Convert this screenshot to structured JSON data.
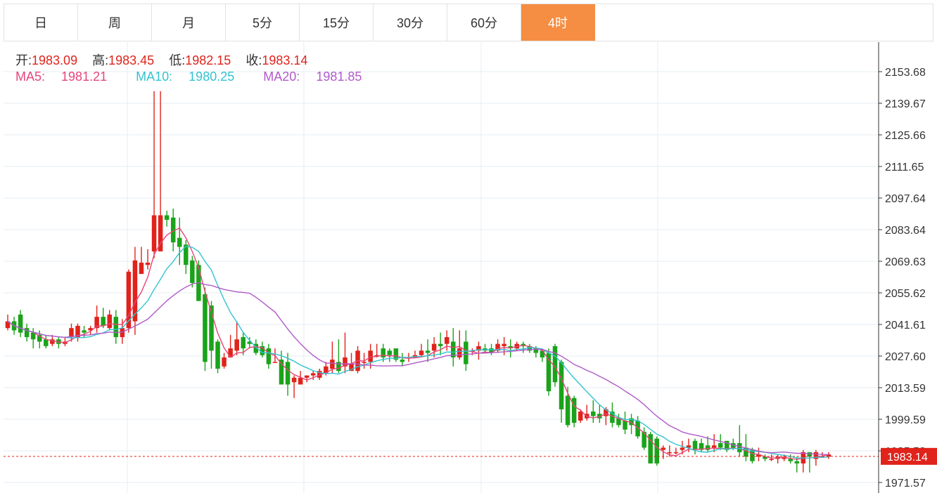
{
  "tabs": [
    {
      "label": "日",
      "active": false
    },
    {
      "label": "周",
      "active": false
    },
    {
      "label": "月",
      "active": false
    },
    {
      "label": "5分",
      "active": false
    },
    {
      "label": "15分",
      "active": false
    },
    {
      "label": "30分",
      "active": false
    },
    {
      "label": "60分",
      "active": false
    },
    {
      "label": "4时",
      "active": true
    }
  ],
  "ohlc": {
    "open_label": "开:",
    "open": "1983.09",
    "high_label": "高:",
    "high": "1983.45",
    "low_label": "低:",
    "low": "1982.15",
    "close_label": "收:",
    "close": "1983.14"
  },
  "ma": {
    "ma5_label": "MA5:",
    "ma5": "1981.21",
    "ma10_label": "MA10:",
    "ma10": "1980.25",
    "ma20_label": "MA20:",
    "ma20": "1981.85"
  },
  "colors": {
    "up": "#e0231b",
    "down": "#1aa31a",
    "ma5": "#e8457a",
    "ma10": "#33c3d1",
    "ma20": "#b05ac8",
    "active_tab": "#f58d42",
    "price_tag": "#e0231b"
  },
  "chart_data": {
    "type": "candlestick",
    "y_ticks": [
      "2153.68",
      "2139.67",
      "2125.66",
      "2111.65",
      "2097.64",
      "2083.64",
      "2069.63",
      "2055.62",
      "2041.61",
      "2027.60",
      "2013.59",
      "1999.59",
      "1985.58",
      "1971.57"
    ],
    "ylim": [
      1969,
      2160
    ],
    "current_price": "1983.14",
    "grid": true,
    "candles": [
      [
        2040,
        2043,
        2046,
        2039
      ],
      [
        2043,
        2039,
        2045,
        2037
      ],
      [
        2046,
        2038,
        2048,
        2036
      ],
      [
        2040,
        2036,
        2042,
        2034
      ],
      [
        2038,
        2035,
        2040,
        2031
      ],
      [
        2037,
        2034,
        2039,
        2031
      ],
      [
        2035,
        2032,
        2037,
        2031
      ],
      [
        2033,
        2035,
        2037,
        2032
      ],
      [
        2035,
        2033,
        2036,
        2031
      ],
      [
        2033,
        2034,
        2036,
        2032
      ],
      [
        2036,
        2040,
        2042,
        2034
      ],
      [
        2036,
        2041,
        2042,
        2034
      ],
      [
        2039,
        2038,
        2041,
        2036
      ],
      [
        2039,
        2040,
        2041,
        2037
      ],
      [
        2040,
        2045,
        2050,
        2038
      ],
      [
        2045,
        2041,
        2049,
        2040
      ],
      [
        2040,
        2046,
        2048,
        2039
      ],
      [
        2045,
        2036,
        2048,
        2033
      ],
      [
        2036,
        2040,
        2044,
        2033
      ],
      [
        2040,
        2065,
        2066,
        2038
      ],
      [
        2043,
        2070,
        2076,
        2037
      ],
      [
        2064,
        2069,
        2076,
        2064
      ],
      [
        2068,
        2069,
        2075,
        2066
      ],
      [
        2074,
        2090,
        2145,
        2071
      ],
      [
        2074,
        2090,
        2145,
        2074
      ],
      [
        2090,
        2088,
        2092,
        2085
      ],
      [
        2089,
        2078,
        2093,
        2074
      ],
      [
        2080,
        2076,
        2089,
        2068
      ],
      [
        2077,
        2068,
        2079,
        2064
      ],
      [
        2070,
        2060,
        2072,
        2058
      ],
      [
        2068,
        2052,
        2070,
        2052
      ],
      [
        2055,
        2025,
        2058,
        2021
      ],
      [
        2050,
        2030,
        2052,
        2022
      ],
      [
        2034,
        2022,
        2035,
        2020
      ],
      [
        2023,
        2027,
        2029,
        2022
      ],
      [
        2027,
        2031,
        2037,
        2028
      ],
      [
        2030,
        2035,
        2043,
        2028
      ],
      [
        2036,
        2031,
        2038,
        2028
      ],
      [
        2034,
        2033,
        2036,
        2031
      ],
      [
        2033,
        2029,
        2035,
        2028
      ],
      [
        2032,
        2028,
        2034,
        2027
      ],
      [
        2031,
        2024,
        2033,
        2022
      ],
      [
        2025,
        2025,
        2031,
        2025
      ],
      [
        2026,
        2015,
        2030,
        2015
      ],
      [
        2025,
        2015,
        2029,
        2010
      ],
      [
        2016,
        2018,
        2019,
        2009
      ],
      [
        2015,
        2018,
        2021,
        2016
      ],
      [
        2018,
        2019,
        2019,
        2016
      ],
      [
        2019,
        2020,
        2021,
        2017
      ],
      [
        2018,
        2021,
        2022,
        2017
      ],
      [
        2020,
        2023,
        2025,
        2019
      ],
      [
        2022,
        2026,
        2034,
        2020
      ],
      [
        2025,
        2021,
        2035,
        2020
      ],
      [
        2023,
        2027,
        2038,
        2020
      ],
      [
        2021,
        2024,
        2029,
        2021
      ],
      [
        2021,
        2030,
        2032,
        2020
      ],
      [
        2025,
        2025,
        2029,
        2022
      ],
      [
        2025,
        2030,
        2033,
        2022
      ],
      [
        2028,
        2028,
        2033,
        2027
      ],
      [
        2031,
        2027,
        2033,
        2025
      ],
      [
        2030,
        2028,
        2031,
        2025
      ],
      [
        2031,
        2026,
        2031,
        2025
      ],
      [
        2026,
        2025,
        2029,
        2023
      ],
      [
        2027,
        2027,
        2029,
        2025
      ],
      [
        2027,
        2028,
        2030,
        2027
      ],
      [
        2028,
        2030,
        2033,
        2027
      ],
      [
        2030,
        2029,
        2035,
        2025
      ],
      [
        2030,
        2033,
        2036,
        2027
      ],
      [
        2033,
        2032,
        2038,
        2028
      ],
      [
        2033,
        2036,
        2039,
        2030
      ],
      [
        2034,
        2027,
        2040,
        2023
      ],
      [
        2027,
        2031,
        2039,
        2026
      ],
      [
        2034,
        2024,
        2039,
        2021
      ],
      [
        2030,
        2030,
        2031,
        2028
      ],
      [
        2030,
        2032,
        2034,
        2026
      ],
      [
        2031,
        2030,
        2033,
        2029
      ],
      [
        2031,
        2029,
        2033,
        2028
      ],
      [
        2030,
        2033,
        2035,
        2029
      ],
      [
        2032,
        2033,
        2036,
        2028
      ],
      [
        2032,
        2031,
        2035,
        2027
      ],
      [
        2031,
        2033,
        2034,
        2030
      ],
      [
        2033,
        2032,
        2034,
        2029
      ],
      [
        2032,
        2030,
        2033,
        2029
      ],
      [
        2031,
        2029,
        2032,
        2027
      ],
      [
        2030,
        2027,
        2031,
        2025
      ],
      [
        2029,
        2012,
        2031,
        2010
      ],
      [
        2032,
        2016,
        2033,
        2014
      ],
      [
        2025,
        2004,
        2026,
        1998
      ],
      [
        2010,
        1997,
        2014,
        1996
      ],
      [
        2009,
        1998,
        2010,
        1996
      ],
      [
        1999,
        2003,
        2004,
        1998
      ],
      [
        2000,
        2002,
        2006,
        1999
      ],
      [
        2003,
        2001,
        2008,
        1998
      ],
      [
        2002,
        2000,
        2006,
        1998
      ],
      [
        2001,
        2004,
        2005,
        1997
      ],
      [
        2003,
        1998,
        2007,
        1996
      ],
      [
        2000,
        1997,
        2002,
        1996
      ],
      [
        1999,
        1995,
        2003,
        1993
      ],
      [
        2000,
        1997,
        2002,
        1993
      ],
      [
        1999,
        1992,
        2001,
        1991
      ],
      [
        1994,
        1987,
        1996,
        1986
      ],
      [
        1993,
        1980,
        1994,
        1980
      ],
      [
        1991,
        1980,
        1992,
        1979
      ],
      [
        1986,
        1987,
        1988,
        1982
      ],
      [
        1985,
        1985,
        1988,
        1983
      ],
      [
        1985,
        1985,
        1987,
        1984
      ],
      [
        1986,
        1987,
        1990,
        1984
      ],
      [
        1987,
        1988,
        1991,
        1985
      ],
      [
        1990,
        1986,
        1991,
        1984
      ],
      [
        1989,
        1986,
        1991,
        1985
      ],
      [
        1988,
        1986,
        1992,
        1985
      ],
      [
        1987,
        1988,
        1993,
        1985
      ],
      [
        1989,
        1987,
        1993,
        1986
      ],
      [
        1990,
        1986,
        1990,
        1985
      ],
      [
        1989,
        1987,
        1991,
        1986
      ],
      [
        1989,
        1985,
        1997,
        1983
      ],
      [
        1987,
        1983,
        1993,
        1981
      ],
      [
        1986,
        1981,
        1987,
        1980
      ],
      [
        1983,
        1984,
        1987,
        1981
      ],
      [
        1983,
        1982,
        1984,
        1981
      ],
      [
        1982,
        1982,
        1984,
        1981
      ],
      [
        1982,
        1983,
        1984,
        1980
      ],
      [
        1982,
        1983,
        1984,
        1981
      ],
      [
        1982,
        1981,
        1984,
        1980
      ],
      [
        1981,
        1980,
        1983,
        1976
      ],
      [
        1980,
        1985,
        1986,
        1976
      ],
      [
        1985,
        1983,
        1985,
        1976
      ],
      [
        1982,
        1985,
        1986,
        1979
      ],
      [
        1983,
        1983,
        1985,
        1983
      ],
      [
        1983,
        1984,
        1985,
        1982
      ]
    ]
  }
}
